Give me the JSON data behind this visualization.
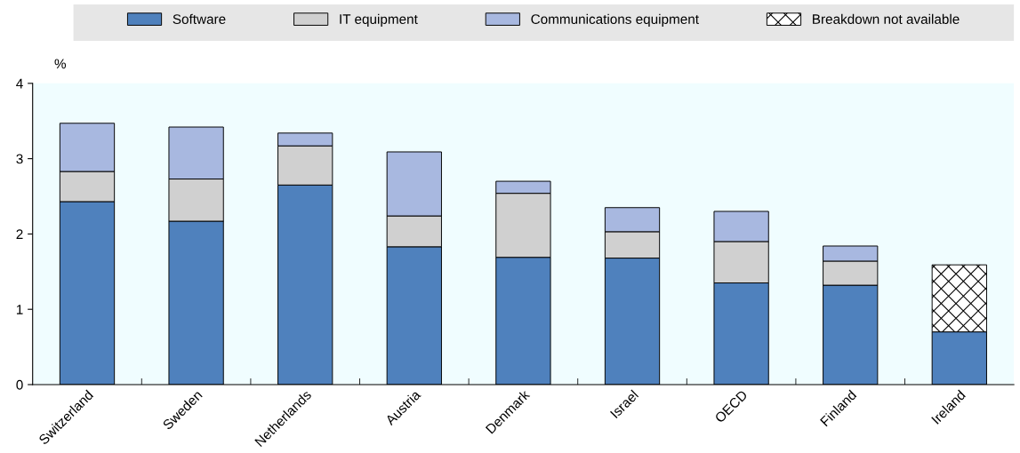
{
  "chart_data": {
    "type": "bar",
    "stacked": true,
    "ylabel": "%",
    "categories": [
      "Switzerland",
      "Sweden",
      "Netherlands",
      "Austria",
      "Denmark",
      "Israel",
      "OECD",
      "Finland",
      "Ireland"
    ],
    "series": [
      {
        "name": "Software",
        "color": "#4f81bd",
        "values": [
          2.43,
          2.17,
          2.65,
          1.83,
          1.69,
          1.68,
          1.35,
          1.32,
          0.7
        ]
      },
      {
        "name": "IT equipment",
        "color": "#d0d0d0",
        "values": [
          0.4,
          0.56,
          0.52,
          0.41,
          0.85,
          0.35,
          0.55,
          0.32,
          null
        ]
      },
      {
        "name": "Communications equipment",
        "color": "#a8b8e0",
        "values": [
          0.64,
          0.69,
          0.17,
          0.85,
          0.16,
          0.32,
          0.4,
          0.2,
          null
        ]
      },
      {
        "name": "Breakdown not available",
        "color": "#ffffff",
        "values": [
          null,
          null,
          null,
          null,
          null,
          null,
          null,
          null,
          0.89
        ]
      }
    ],
    "ylim": [
      0,
      4
    ],
    "yticks": [
      0,
      1,
      2,
      3,
      4
    ],
    "grid": false,
    "legend": "top"
  }
}
